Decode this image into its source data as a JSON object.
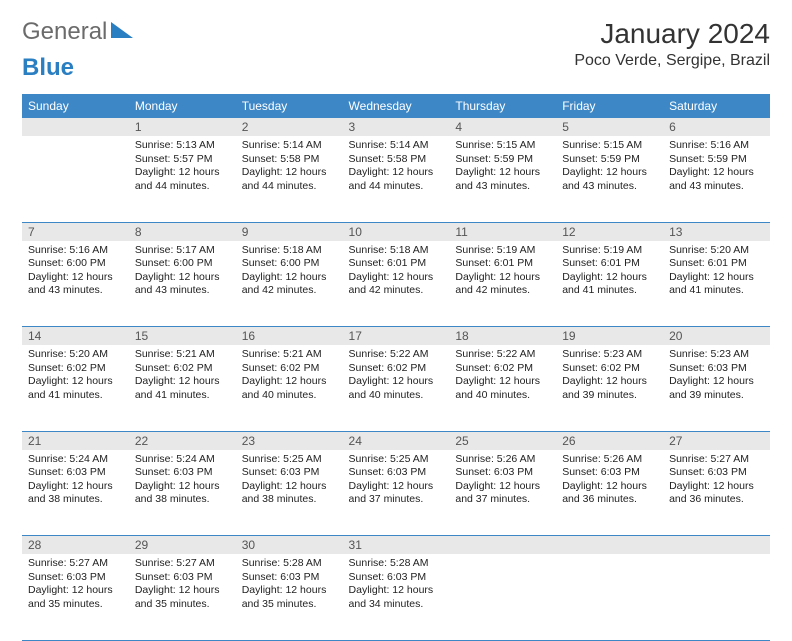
{
  "logo": {
    "word1": "General",
    "word2": "Blue"
  },
  "title": "January 2024",
  "location": "Poco Verde, Sergipe, Brazil",
  "colors": {
    "header_bg": "#3d87c7",
    "header_text": "#ffffff",
    "daynum_bg": "#e8e8e8",
    "border": "#3d87c7",
    "logo_gray": "#6b6b6b",
    "logo_blue": "#2a7ec2"
  },
  "weekdays": [
    "Sunday",
    "Monday",
    "Tuesday",
    "Wednesday",
    "Thursday",
    "Friday",
    "Saturday"
  ],
  "weeks": [
    {
      "nums": [
        "",
        "1",
        "2",
        "3",
        "4",
        "5",
        "6"
      ],
      "cells": [
        null,
        {
          "sunrise": "5:13 AM",
          "sunset": "5:57 PM",
          "daylight": "12 hours and 44 minutes."
        },
        {
          "sunrise": "5:14 AM",
          "sunset": "5:58 PM",
          "daylight": "12 hours and 44 minutes."
        },
        {
          "sunrise": "5:14 AM",
          "sunset": "5:58 PM",
          "daylight": "12 hours and 44 minutes."
        },
        {
          "sunrise": "5:15 AM",
          "sunset": "5:59 PM",
          "daylight": "12 hours and 43 minutes."
        },
        {
          "sunrise": "5:15 AM",
          "sunset": "5:59 PM",
          "daylight": "12 hours and 43 minutes."
        },
        {
          "sunrise": "5:16 AM",
          "sunset": "5:59 PM",
          "daylight": "12 hours and 43 minutes."
        }
      ]
    },
    {
      "nums": [
        "7",
        "8",
        "9",
        "10",
        "11",
        "12",
        "13"
      ],
      "cells": [
        {
          "sunrise": "5:16 AM",
          "sunset": "6:00 PM",
          "daylight": "12 hours and 43 minutes."
        },
        {
          "sunrise": "5:17 AM",
          "sunset": "6:00 PM",
          "daylight": "12 hours and 43 minutes."
        },
        {
          "sunrise": "5:18 AM",
          "sunset": "6:00 PM",
          "daylight": "12 hours and 42 minutes."
        },
        {
          "sunrise": "5:18 AM",
          "sunset": "6:01 PM",
          "daylight": "12 hours and 42 minutes."
        },
        {
          "sunrise": "5:19 AM",
          "sunset": "6:01 PM",
          "daylight": "12 hours and 42 minutes."
        },
        {
          "sunrise": "5:19 AM",
          "sunset": "6:01 PM",
          "daylight": "12 hours and 41 minutes."
        },
        {
          "sunrise": "5:20 AM",
          "sunset": "6:01 PM",
          "daylight": "12 hours and 41 minutes."
        }
      ]
    },
    {
      "nums": [
        "14",
        "15",
        "16",
        "17",
        "18",
        "19",
        "20"
      ],
      "cells": [
        {
          "sunrise": "5:20 AM",
          "sunset": "6:02 PM",
          "daylight": "12 hours and 41 minutes."
        },
        {
          "sunrise": "5:21 AM",
          "sunset": "6:02 PM",
          "daylight": "12 hours and 41 minutes."
        },
        {
          "sunrise": "5:21 AM",
          "sunset": "6:02 PM",
          "daylight": "12 hours and 40 minutes."
        },
        {
          "sunrise": "5:22 AM",
          "sunset": "6:02 PM",
          "daylight": "12 hours and 40 minutes."
        },
        {
          "sunrise": "5:22 AM",
          "sunset": "6:02 PM",
          "daylight": "12 hours and 40 minutes."
        },
        {
          "sunrise": "5:23 AM",
          "sunset": "6:02 PM",
          "daylight": "12 hours and 39 minutes."
        },
        {
          "sunrise": "5:23 AM",
          "sunset": "6:03 PM",
          "daylight": "12 hours and 39 minutes."
        }
      ]
    },
    {
      "nums": [
        "21",
        "22",
        "23",
        "24",
        "25",
        "26",
        "27"
      ],
      "cells": [
        {
          "sunrise": "5:24 AM",
          "sunset": "6:03 PM",
          "daylight": "12 hours and 38 minutes."
        },
        {
          "sunrise": "5:24 AM",
          "sunset": "6:03 PM",
          "daylight": "12 hours and 38 minutes."
        },
        {
          "sunrise": "5:25 AM",
          "sunset": "6:03 PM",
          "daylight": "12 hours and 38 minutes."
        },
        {
          "sunrise": "5:25 AM",
          "sunset": "6:03 PM",
          "daylight": "12 hours and 37 minutes."
        },
        {
          "sunrise": "5:26 AM",
          "sunset": "6:03 PM",
          "daylight": "12 hours and 37 minutes."
        },
        {
          "sunrise": "5:26 AM",
          "sunset": "6:03 PM",
          "daylight": "12 hours and 36 minutes."
        },
        {
          "sunrise": "5:27 AM",
          "sunset": "6:03 PM",
          "daylight": "12 hours and 36 minutes."
        }
      ]
    },
    {
      "nums": [
        "28",
        "29",
        "30",
        "31",
        "",
        "",
        ""
      ],
      "cells": [
        {
          "sunrise": "5:27 AM",
          "sunset": "6:03 PM",
          "daylight": "12 hours and 35 minutes."
        },
        {
          "sunrise": "5:27 AM",
          "sunset": "6:03 PM",
          "daylight": "12 hours and 35 minutes."
        },
        {
          "sunrise": "5:28 AM",
          "sunset": "6:03 PM",
          "daylight": "12 hours and 35 minutes."
        },
        {
          "sunrise": "5:28 AM",
          "sunset": "6:03 PM",
          "daylight": "12 hours and 34 minutes."
        },
        null,
        null,
        null
      ]
    }
  ],
  "labels": {
    "sunrise": "Sunrise:",
    "sunset": "Sunset:",
    "daylight": "Daylight:"
  }
}
